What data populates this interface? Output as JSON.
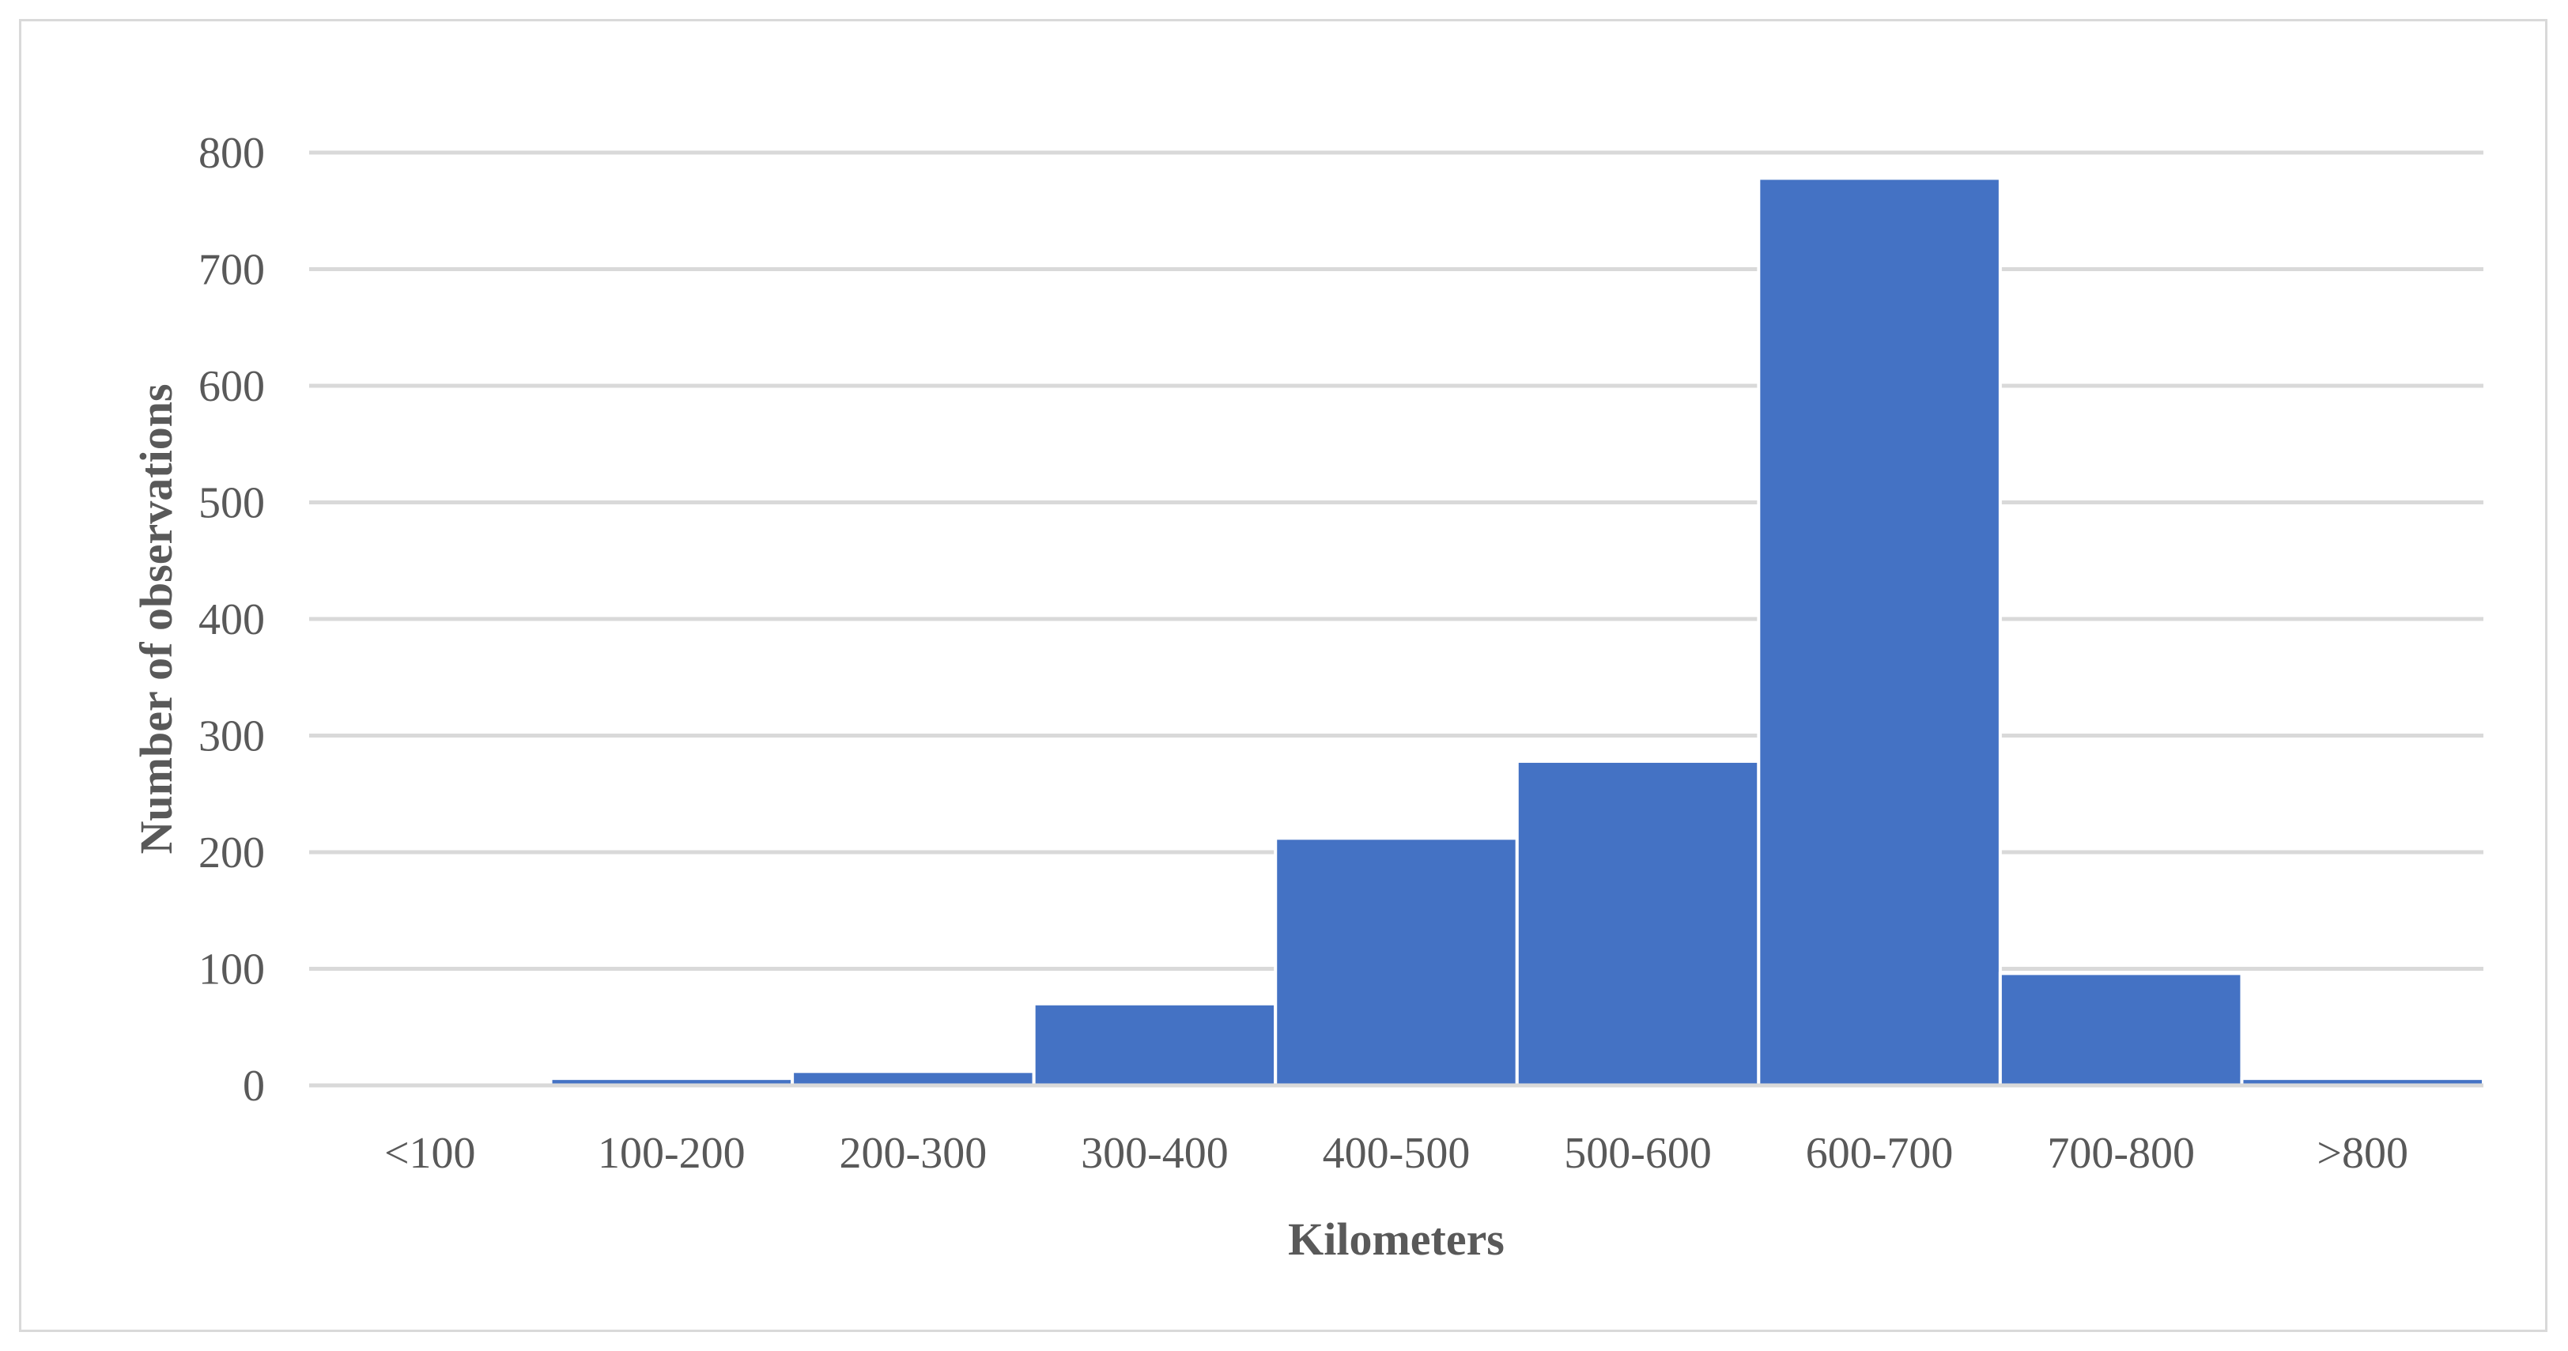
{
  "chart_data": {
    "type": "bar",
    "title": "",
    "xlabel": "Kilometers",
    "ylabel": "Number of observations",
    "categories": [
      "<100",
      "100-200",
      "200-300",
      "300-400",
      "400-500",
      "500-600",
      "600-700",
      "700-800",
      ">800"
    ],
    "values": [
      3,
      6,
      12,
      70,
      212,
      278,
      778,
      96,
      6
    ],
    "ylim": [
      0,
      800
    ],
    "yticks": [
      0,
      100,
      200,
      300,
      400,
      500,
      600,
      700,
      800
    ],
    "ytick_labels": [
      "0",
      "100",
      "200",
      "300",
      "400",
      "500",
      "600",
      "700",
      "800"
    ],
    "grid": true,
    "legend": "none",
    "bar_color": "#4472c4",
    "gridline_color": "#d9d9d9"
  }
}
